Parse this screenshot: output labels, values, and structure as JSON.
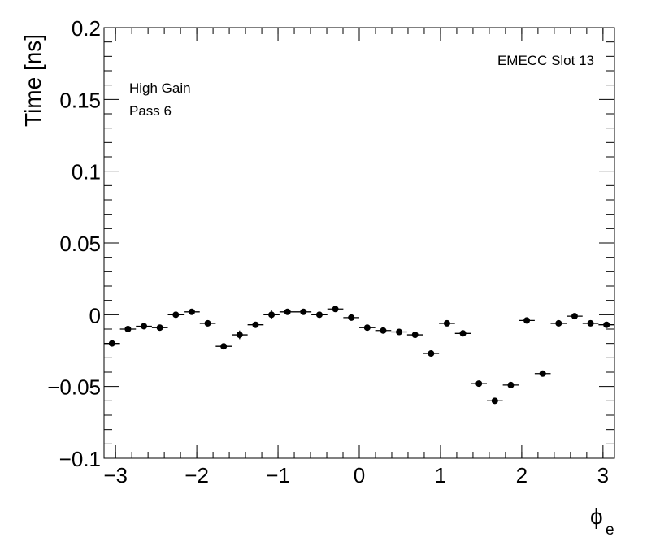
{
  "chart_data": {
    "type": "scatter",
    "xlabel": "ϕ",
    "xlabel_sub": "e",
    "ylabel": "Time [ns]",
    "xlim": [
      -3.1416,
      3.1416
    ],
    "ylim": [
      -0.1,
      0.2
    ],
    "xticks": [
      -3,
      -2,
      -1,
      0,
      1,
      2,
      3
    ],
    "xtick_labels": [
      "−3",
      "−2",
      "−1",
      "0",
      "1",
      "2",
      "3"
    ],
    "yticks": [
      -0.1,
      -0.05,
      0,
      0.05,
      0.1,
      0.15,
      0.2
    ],
    "ytick_labels": [
      "−0.1",
      "−0.05",
      "0",
      "0.05",
      "0.1",
      "0.15",
      "0.2"
    ],
    "grid": false,
    "annotations": {
      "top_right": "EMECC Slot 13",
      "line1": "High Gain",
      "line2": "Pass 6"
    },
    "series": [
      {
        "x_half_width": 0.0982,
        "points": [
          {
            "x": -3.0434,
            "y": -0.02,
            "err": 0.0015
          },
          {
            "x": -2.8471,
            "y": -0.01,
            "err": 0.0015
          },
          {
            "x": -2.6507,
            "y": -0.008,
            "err": 0.0015
          },
          {
            "x": -2.4544,
            "y": -0.009,
            "err": 0.0015
          },
          {
            "x": -2.258,
            "y": 0.0,
            "err": 0.0015
          },
          {
            "x": -2.0617,
            "y": 0.002,
            "err": 0.0015
          },
          {
            "x": -1.8653,
            "y": -0.006,
            "err": 0.0015
          },
          {
            "x": -1.669,
            "y": -0.022,
            "err": 0.0015
          },
          {
            "x": -1.4726,
            "y": -0.014,
            "err": 0.003
          },
          {
            "x": -1.2763,
            "y": -0.007,
            "err": 0.0015
          },
          {
            "x": -1.0799,
            "y": 0.0,
            "err": 0.003
          },
          {
            "x": -0.8836,
            "y": 0.002,
            "err": 0.0015
          },
          {
            "x": -0.6872,
            "y": 0.002,
            "err": 0.0015
          },
          {
            "x": -0.4909,
            "y": 0.0,
            "err": 0.0015
          },
          {
            "x": -0.2945,
            "y": 0.004,
            "err": 0.0015
          },
          {
            "x": -0.0982,
            "y": -0.002,
            "err": 0.0015
          },
          {
            "x": 0.0982,
            "y": -0.009,
            "err": 0.0015
          },
          {
            "x": 0.2945,
            "y": -0.011,
            "err": 0.0015
          },
          {
            "x": 0.4909,
            "y": -0.012,
            "err": 0.0015
          },
          {
            "x": 0.6872,
            "y": -0.014,
            "err": 0.002
          },
          {
            "x": 0.8836,
            "y": -0.027,
            "err": 0.0015
          },
          {
            "x": 1.0799,
            "y": -0.006,
            "err": 0.0015
          },
          {
            "x": 1.2763,
            "y": -0.013,
            "err": 0.0015
          },
          {
            "x": 1.4726,
            "y": -0.048,
            "err": 0.0015
          },
          {
            "x": 1.669,
            "y": -0.06,
            "err": 0.0015
          },
          {
            "x": 1.8653,
            "y": -0.049,
            "err": 0.0015
          },
          {
            "x": 2.0617,
            "y": -0.004,
            "err": 0.0015
          },
          {
            "x": 2.258,
            "y": -0.041,
            "err": 0.0015
          },
          {
            "x": 2.4544,
            "y": -0.006,
            "err": 0.0015
          },
          {
            "x": 2.6507,
            "y": -0.001,
            "err": 0.0015
          },
          {
            "x": 2.8471,
            "y": -0.006,
            "err": 0.0015
          },
          {
            "x": 3.0434,
            "y": -0.007,
            "err": 0.0015
          }
        ]
      }
    ]
  }
}
